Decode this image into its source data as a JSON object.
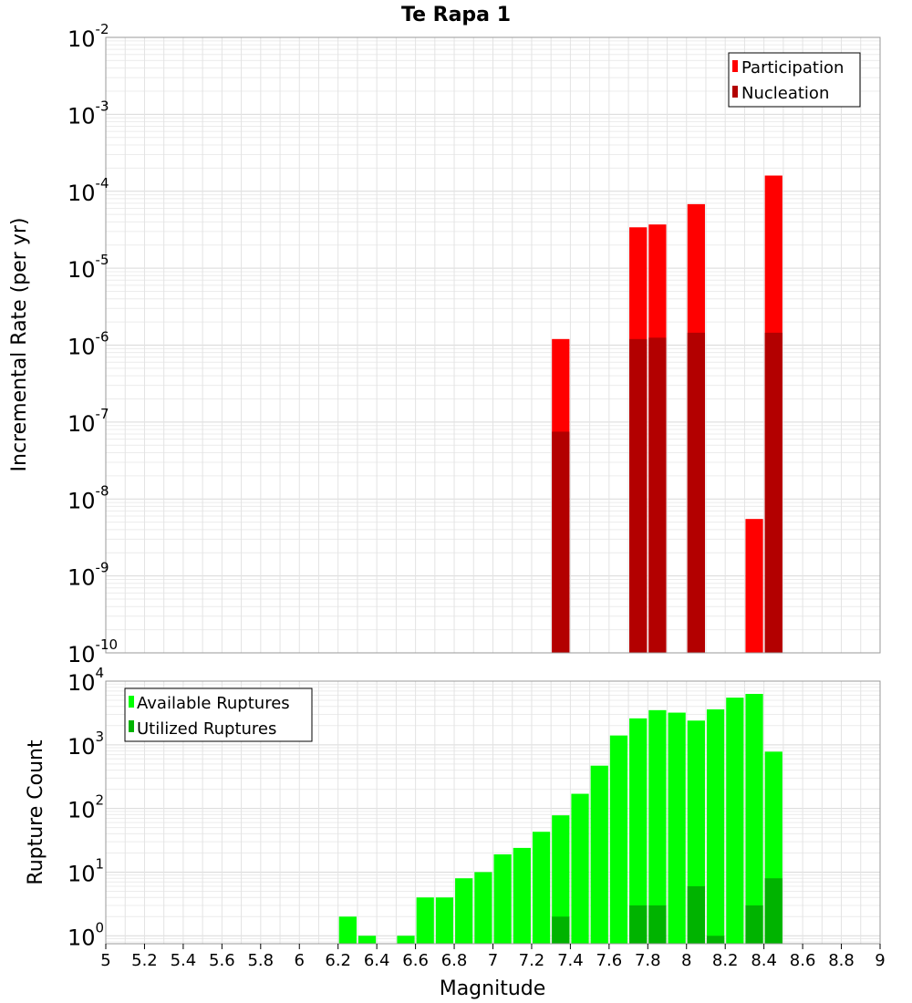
{
  "title": "Te Rapa 1",
  "chart_data": [
    {
      "type": "bar",
      "panel": "rate",
      "ylabel": "Incremental Rate (per yr)",
      "yscale": "log",
      "ylim": [
        1e-10,
        0.01
      ],
      "xlim": [
        5,
        9
      ],
      "x_step": 0.1,
      "yticks": [
        {
          "base": "10",
          "exp": "-10"
        },
        {
          "base": "10",
          "exp": "-9"
        },
        {
          "base": "10",
          "exp": "-8"
        },
        {
          "base": "10",
          "exp": "-7"
        },
        {
          "base": "10",
          "exp": "-6"
        },
        {
          "base": "10",
          "exp": "-5"
        },
        {
          "base": "10",
          "exp": "-4"
        },
        {
          "base": "10",
          "exp": "-3"
        },
        {
          "base": "10",
          "exp": "-2"
        }
      ],
      "legend": "top-right",
      "series": [
        {
          "name": "Participation",
          "color": "#ff0000",
          "x": [
            7.35,
            7.75,
            7.85,
            8.05,
            8.35,
            8.45
          ],
          "values": [
            1.2e-06,
            3.4e-05,
            3.7e-05,
            6.8e-05,
            5.5e-09,
            0.00016
          ]
        },
        {
          "name": "Nucleation",
          "color": "#b30000",
          "x": [
            7.35,
            7.75,
            7.85,
            8.05,
            8.45
          ],
          "values": [
            7.5e-08,
            1.2e-06,
            1.25e-06,
            1.45e-06,
            1.45e-06
          ]
        }
      ]
    },
    {
      "type": "bar",
      "panel": "count",
      "ylabel": "Rupture Count",
      "xlabel": "Magnitude",
      "yscale": "log",
      "ylim": [
        0.75,
        10000
      ],
      "xlim": [
        5,
        9
      ],
      "x_step": 0.1,
      "xticks": [
        "5",
        "5.2",
        "5.4",
        "5.6",
        "5.8",
        "6",
        "6.2",
        "6.4",
        "6.6",
        "6.8",
        "7",
        "7.2",
        "7.4",
        "7.6",
        "7.8",
        "8",
        "8.2",
        "8.4",
        "8.6",
        "8.8",
        "9"
      ],
      "yticks": [
        {
          "base": "10",
          "exp": "0"
        },
        {
          "base": "10",
          "exp": "1"
        },
        {
          "base": "10",
          "exp": "2"
        },
        {
          "base": "10",
          "exp": "3"
        },
        {
          "base": "10",
          "exp": "4"
        }
      ],
      "legend": "top-left",
      "series": [
        {
          "name": "Available Ruptures",
          "color": "#00ff00",
          "x": [
            6.25,
            6.35,
            6.55,
            6.65,
            6.75,
            6.85,
            6.95,
            7.05,
            7.15,
            7.25,
            7.35,
            7.45,
            7.55,
            7.65,
            7.75,
            7.85,
            7.95,
            8.05,
            8.15,
            8.25,
            8.35,
            8.45
          ],
          "values": [
            2,
            1,
            1,
            4,
            4,
            8,
            10,
            19,
            24,
            43,
            78,
            170,
            470,
            1400,
            2600,
            3500,
            3200,
            2400,
            3600,
            5500,
            6300,
            780
          ]
        },
        {
          "name": "Utilized Ruptures",
          "color": "#00b300",
          "x": [
            7.35,
            7.75,
            7.85,
            8.05,
            8.15,
            8.35,
            8.45
          ],
          "values": [
            2,
            3,
            3,
            6,
            1,
            3,
            8
          ]
        }
      ]
    }
  ]
}
